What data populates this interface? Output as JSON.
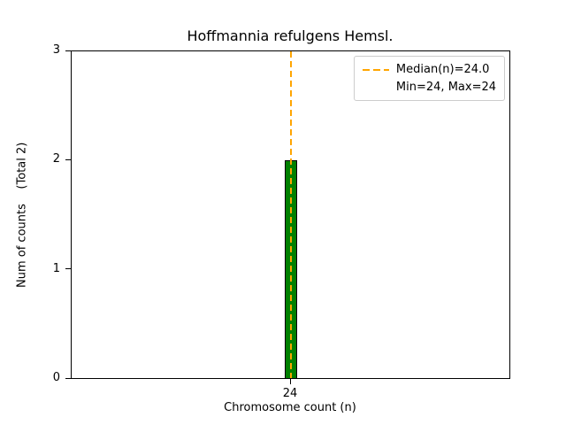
{
  "chart_data": {
    "type": "bar",
    "title": "Hoffmannia refulgens Hemsl.",
    "xlabel": "Chromosome count (n)",
    "ylabel": "Num of counts    (Total 2)",
    "categories": [
      "24"
    ],
    "values": [
      2
    ],
    "ylim": [
      0,
      3
    ],
    "yticks": [
      "0",
      "1",
      "2",
      "3"
    ],
    "xticks": [
      "24"
    ],
    "total_counts": 2,
    "median_n": 24.0,
    "min_n": 24,
    "max_n": 24,
    "legend": [
      "Median(n)=24.0",
      "Min=24, Max=24"
    ],
    "legend_position": "upper right",
    "grid": false,
    "colors": {
      "bar_fill": "#008000",
      "bar_edge": "#000000",
      "median_line": "#FFA500",
      "axis": "#000000",
      "legend_border": "#cccccc"
    }
  }
}
